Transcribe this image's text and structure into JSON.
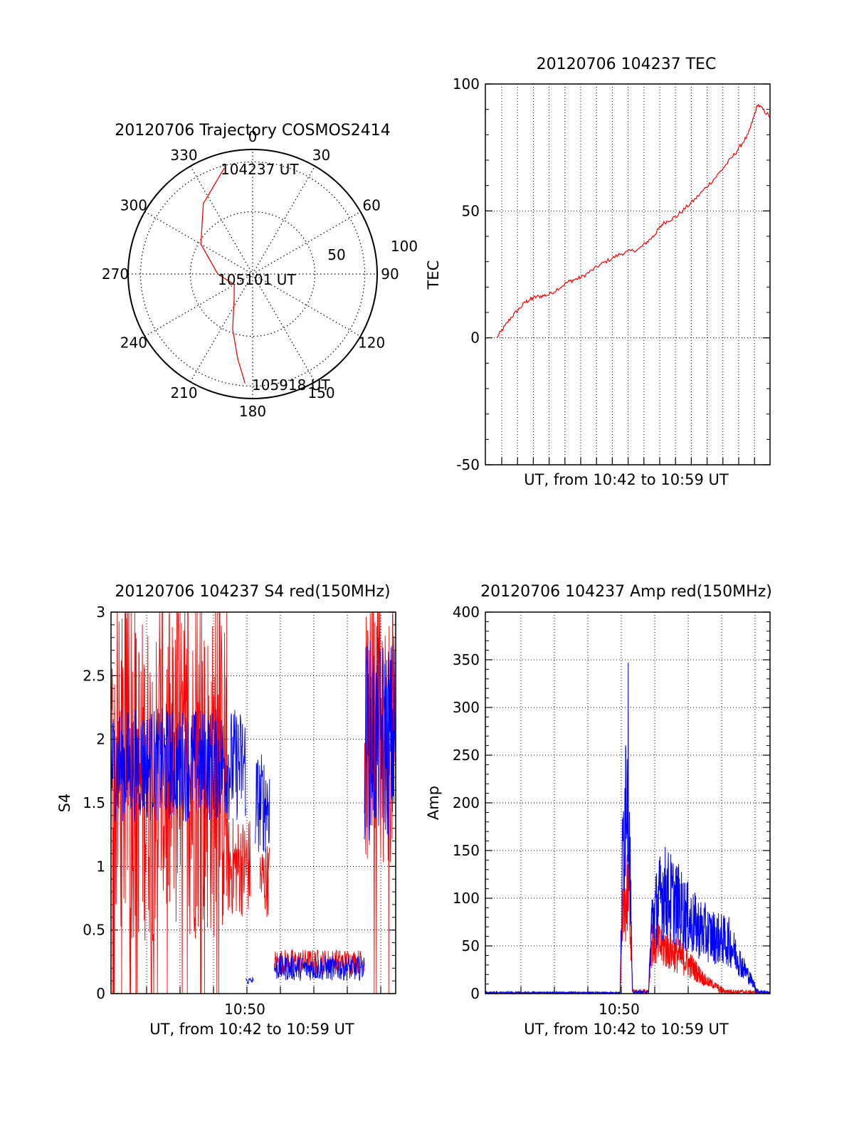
{
  "colors": {
    "red": "#ff0000",
    "blue": "#0000ff",
    "axis": "#000000",
    "grid": "#000000",
    "background": "#ffffff"
  },
  "chart_data": [
    {
      "id": "trajectory",
      "type": "polar",
      "title": "20120706 Trajectory COSMOS2414",
      "azimuth_labels": [
        "0",
        "30",
        "60",
        "90",
        "120",
        "150",
        "180",
        "210",
        "240",
        "270",
        "300",
        "330"
      ],
      "radial_labels": [
        "50",
        "100"
      ],
      "radial_range": [
        0,
        100
      ],
      "grid": true,
      "annotations": [
        "104237 UT",
        "105101 UT",
        "105918 UT"
      ],
      "series": [
        {
          "color": "red",
          "points_az_el": [
            [
              345,
              12
            ],
            [
              325,
              31
            ],
            [
              300,
              52
            ],
            [
              270,
              72
            ],
            [
              240,
              83
            ],
            [
              215,
              74
            ],
            [
              200,
              53
            ],
            [
              190,
              31
            ],
            [
              184,
              12
            ]
          ]
        }
      ]
    },
    {
      "id": "tec",
      "type": "line",
      "title": "20120706 104237 TEC",
      "ylabel": "TEC",
      "xlabel": "UT, from 10:42 to 10:59 UT",
      "ylim": [
        -50,
        100
      ],
      "xlim": [
        10.698,
        10.998
      ],
      "yticks": [
        "-50",
        "0",
        "50",
        "100"
      ],
      "grid": true,
      "series": [
        {
          "color": "red",
          "x": [
            10.71,
            10.725,
            10.74,
            10.75,
            10.765,
            10.785,
            10.8,
            10.82,
            10.84,
            10.86,
            10.875,
            10.885,
            10.9,
            10.92,
            10.94,
            10.96,
            10.975,
            10.985,
            10.998
          ],
          "y": [
            0,
            8,
            14,
            16,
            17,
            22,
            24,
            29,
            33,
            35,
            40,
            45,
            48,
            55,
            63,
            72,
            80,
            92,
            87
          ]
        }
      ]
    },
    {
      "id": "s4",
      "type": "line",
      "title": "20120706 104237 S4 red(150MHz)",
      "ylabel": "S4",
      "xlabel": "UT, from 10:42 to 10:59 UT",
      "xtick_label": "10:50",
      "ylim": [
        0,
        3
      ],
      "xlim": [
        10.698,
        10.998
      ],
      "yticks": [
        "0",
        "0.5",
        "1",
        "1.5",
        "2",
        "2.5",
        "3"
      ],
      "grid": true,
      "series": [
        {
          "color": "red",
          "segments": [
            {
              "x0": 10.698,
              "x1": 10.82,
              "mean": 1.7,
              "spread": 1.3,
              "dropouts": true
            },
            {
              "x0": 10.82,
              "x1": 10.845,
              "mean": 1.0,
              "spread": 0.4
            },
            {
              "x0": 10.855,
              "x1": 10.865,
              "mean": 0.9,
              "spread": 0.3
            },
            {
              "x0": 10.87,
              "x1": 10.965,
              "mean": 0.25,
              "spread": 0.1
            },
            {
              "x0": 10.965,
              "x1": 10.998,
              "mean": 2.0,
              "spread": 1.0,
              "dropouts": true
            }
          ]
        },
        {
          "color": "blue",
          "segments": [
            {
              "x0": 10.698,
              "x1": 10.84,
              "mean": 1.8,
              "spread": 0.45
            },
            {
              "x0": 10.84,
              "x1": 10.848,
              "mean": 0.1,
              "spread": 0.03
            },
            {
              "x0": 10.85,
              "x1": 10.865,
              "mean": 1.5,
              "spread": 0.4
            },
            {
              "x0": 10.87,
              "x1": 10.965,
              "mean": 0.2,
              "spread": 0.1
            },
            {
              "x0": 10.965,
              "x1": 10.998,
              "mean": 2.0,
              "spread": 0.8
            }
          ]
        }
      ]
    },
    {
      "id": "amp",
      "type": "line",
      "title": "20120706 104237 Amp red(150MHz)",
      "ylabel": "Amp",
      "xlabel": "UT, from 10:42 to 10:59 UT",
      "xtick_label": "10:50",
      "ylim": [
        0,
        400
      ],
      "xlim": [
        10.698,
        10.998
      ],
      "yticks": [
        "0",
        "50",
        "100",
        "150",
        "200",
        "250",
        "300",
        "350",
        "400"
      ],
      "grid": true,
      "series": [
        {
          "color": "red",
          "envelope": [
            [
              10.698,
              1
            ],
            [
              10.84,
              1
            ],
            [
              10.843,
              120
            ],
            [
              10.85,
              160
            ],
            [
              10.853,
              5
            ],
            [
              10.87,
              5
            ],
            [
              10.873,
              80
            ],
            [
              10.89,
              70
            ],
            [
              10.91,
              50
            ],
            [
              10.93,
              20
            ],
            [
              10.95,
              5
            ],
            [
              10.998,
              2
            ]
          ]
        },
        {
          "color": "blue",
          "envelope": [
            [
              10.698,
              2
            ],
            [
              10.84,
              2
            ],
            [
              10.843,
              230
            ],
            [
              10.848,
              390
            ],
            [
              10.853,
              3
            ],
            [
              10.87,
              3
            ],
            [
              10.873,
              110
            ],
            [
              10.885,
              160
            ],
            [
              10.9,
              140
            ],
            [
              10.915,
              110
            ],
            [
              10.935,
              90
            ],
            [
              10.955,
              80
            ],
            [
              10.97,
              40
            ],
            [
              10.985,
              5
            ],
            [
              10.998,
              2
            ]
          ]
        }
      ]
    }
  ]
}
